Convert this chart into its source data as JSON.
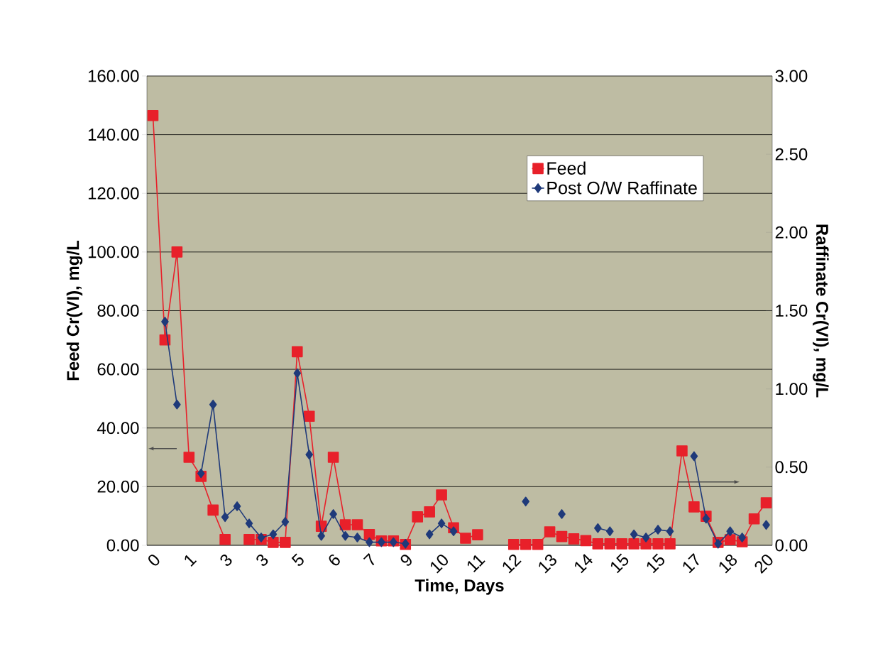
{
  "chart_data": {
    "type": "line",
    "xlabel": "Time, Days",
    "ylabel": "Feed Cr(VI), mg/L",
    "y2label": "Raffinate Cr(VI), mg/L",
    "categories": [
      "0",
      null,
      null,
      "1",
      null,
      null,
      "3",
      null,
      null,
      "3",
      null,
      null,
      "5",
      null,
      null,
      "6",
      null,
      null,
      "7",
      null,
      null,
      "9",
      null,
      null,
      "10",
      null,
      null,
      "11",
      null,
      null,
      "12",
      null,
      null,
      "13",
      null,
      null,
      "14",
      null,
      null,
      "15",
      null,
      null,
      "15",
      null,
      null,
      "17",
      null,
      null,
      "18",
      null,
      null,
      "20"
    ],
    "series": [
      {
        "name": "Feed",
        "color": "#e8202a",
        "marker": "square",
        "values": [
          146.5,
          70,
          100,
          30,
          23.5,
          12,
          2,
          null,
          2,
          2,
          1,
          1,
          66,
          44,
          6.5,
          30,
          7,
          7,
          3.7,
          1.5,
          1.5,
          0.3,
          9.7,
          11.4,
          17.2,
          6,
          2.4,
          3.6,
          null,
          null,
          0.3,
          0.3,
          0.3,
          4.6,
          3,
          2.2,
          1.6,
          0.5,
          0.5,
          0.5,
          0.5,
          0.5,
          0.5,
          0.5,
          32.2,
          13.1,
          9.9,
          1,
          1.9,
          1.2,
          9,
          14.5
        ]
      },
      {
        "name": "Post O/W Raffinate",
        "color": "#1f3a7a",
        "marker": "diamond",
        "axis": "y2",
        "values": [
          null,
          1.43,
          0.9,
          null,
          0.46,
          0.9,
          0.18,
          0.25,
          0.14,
          0.05,
          0.07,
          0.15,
          1.1,
          0.58,
          0.06,
          0.2,
          0.06,
          0.05,
          0.02,
          0.02,
          0.02,
          0.01,
          null,
          0.07,
          0.14,
          0.09,
          null,
          null,
          null,
          null,
          null,
          0.28,
          null,
          null,
          0.2,
          null,
          null,
          0.11,
          0.09,
          null,
          0.07,
          0.05,
          0.1,
          0.09,
          null,
          0.57,
          0.17,
          0.01,
          0.09,
          0.05,
          null,
          0.13
        ]
      }
    ],
    "ylim": [
      0,
      160
    ],
    "yticks": [
      {
        "value": 0,
        "label": "0.00"
      },
      {
        "value": 20,
        "label": "20.00"
      },
      {
        "value": 40,
        "label": "40.00"
      },
      {
        "value": 60,
        "label": "60.00"
      },
      {
        "value": 80,
        "label": "80.00"
      },
      {
        "value": 100,
        "label": "100.00"
      },
      {
        "value": 120,
        "label": "120.00"
      },
      {
        "value": 140,
        "label": "140.00"
      },
      {
        "value": 160,
        "label": "160.00"
      }
    ],
    "y2lim": [
      0,
      3
    ],
    "y2ticks": [
      {
        "value": 0,
        "label": "0.00"
      },
      {
        "value": 0.5,
        "label": "0.50"
      },
      {
        "value": 1,
        "label": "1.00"
      },
      {
        "value": 1.5,
        "label": "1.50"
      },
      {
        "value": 2,
        "label": "2.00"
      },
      {
        "value": 2.5,
        "label": "2.50"
      },
      {
        "value": 3,
        "label": "3.00"
      }
    ],
    "grid": "y",
    "legend": "top right"
  }
}
